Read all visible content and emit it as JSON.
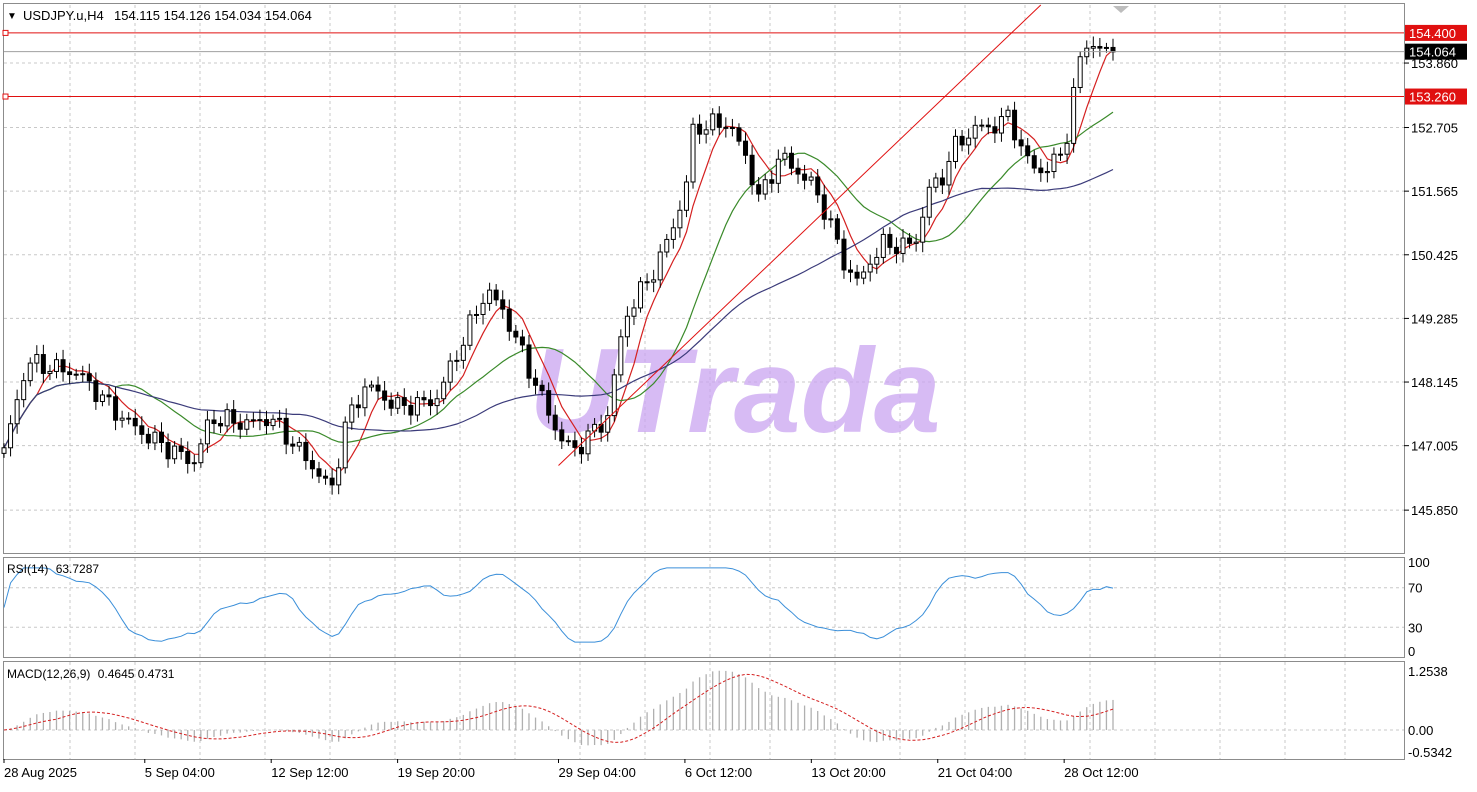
{
  "header": {
    "arrow": "▼",
    "symbol": "USDJPY.u,H4",
    "ohlc": "154.115 154.126 154.034 154.064"
  },
  "watermark": "UTrada",
  "colors": {
    "candle": "#000000",
    "sma_fast": "#d42020",
    "sma_mid": "#3a8a2a",
    "sma_slow": "#3b3b7a",
    "level_line": "#e01010",
    "trendline": "#e01010",
    "rsi": "#3b8fd9",
    "macd_hist": "#b0b0b0",
    "macd_signal": "#d42020",
    "price_tag_bg": "#000000",
    "level_tag_bg": "#e01010",
    "watermark": "#c9a4f0",
    "grid": "#c8c8c8"
  },
  "chart_data": [
    {
      "type": "candlestick",
      "name": "price",
      "ylim": [
        145.1,
        154.9
      ],
      "ytick_labels": [
        "145.850",
        "147.005",
        "148.145",
        "149.285",
        "150.425",
        "151.565",
        "152.705",
        "153.860"
      ],
      "xtick_labels": [
        "28 Aug 2025",
        "5 Sep 04:00",
        "12 Sep 12:00",
        "19 Sep 20:00",
        "29 Sep 04:00",
        "6 Oct 12:00",
        "13 Oct 20:00",
        "21 Oct 04:00",
        "28 Oct 12:00"
      ],
      "current_price": "154.064",
      "horizontal_levels": [
        "154.400",
        "153.260"
      ],
      "trendline": {
        "from": [
          "29 Sep 04:00",
          146.65
        ],
        "to": [
          "28 Oct 12:00",
          155.3
        ]
      },
      "anchors": [
        [
          "28 Aug 2025",
          146.9
        ],
        [
          "29 Aug 08:00",
          148.5
        ],
        [
          "1 Sep 08:00",
          148.3
        ],
        [
          "3 Sep 12:00",
          147.6
        ],
        [
          "5 Sep 04:00",
          147.2
        ],
        [
          "8 Sep 00:00",
          146.7
        ],
        [
          "9 Sep 00:00",
          147.5
        ],
        [
          "11 Sep 04:00",
          147.4
        ],
        [
          "12 Sep 12:00",
          147.5
        ],
        [
          "15 Sep 00:00",
          146.6
        ],
        [
          "16 Sep 00:00",
          146.2
        ],
        [
          "16 Sep 20:00",
          147.4
        ],
        [
          "18 Sep 00:00",
          148.1
        ],
        [
          "19 Sep 20:00",
          147.7
        ],
        [
          "22 Sep 00:00",
          147.8
        ],
        [
          "23 Sep 12:00",
          148.8
        ],
        [
          "25 Sep 00:00",
          149.8
        ],
        [
          "26 Sep 00:00",
          149.4
        ],
        [
          "28 Sep 00:00",
          148.0
        ],
        [
          "29 Sep 04:00",
          147.2
        ],
        [
          "30 Sep 00:00",
          146.9
        ],
        [
          "1 Oct 08:00",
          147.3
        ],
        [
          "2 Oct 00:00",
          147.5
        ],
        [
          "3 Oct 00:00",
          149.3
        ],
        [
          "5 Oct 00:00",
          150.3
        ],
        [
          "6 Oct 12:00",
          151.5
        ],
        [
          "7 Oct 00:00",
          152.7
        ],
        [
          "9 Oct 00:00",
          152.8
        ],
        [
          "10 Oct 00:00",
          152.2
        ],
        [
          "10 Oct 20:00",
          151.4
        ],
        [
          "12 Oct 00:00",
          152.2
        ],
        [
          "13 Oct 20:00",
          151.7
        ],
        [
          "14 Oct 16:00",
          151.2
        ],
        [
          "15 Oct 20:00",
          150.2
        ],
        [
          "16 Oct 16:00",
          149.9
        ],
        [
          "17 Oct 04:00",
          150.3
        ],
        [
          "18 Oct 00:00",
          150.6
        ],
        [
          "19 Oct 20:00",
          150.6
        ],
        [
          "20 Oct 20:00",
          151.8
        ],
        [
          "21 Oct 04:00",
          151.6
        ],
        [
          "22 Oct 00:00",
          152.3
        ],
        [
          "23 Oct 08:00",
          152.7
        ],
        [
          "24 Oct 04:00",
          152.7
        ],
        [
          "25 Oct 08:00",
          152.9
        ],
        [
          "26 Oct 08:00",
          152.1
        ],
        [
          "27 Oct 08:00",
          151.9
        ],
        [
          "28 Oct 12:00",
          152.3
        ],
        [
          "29 Oct 00:00",
          153.2
        ],
        [
          "29 Oct 16:00",
          154.3
        ],
        [
          "30 Oct 08:00",
          154.1
        ],
        [
          "31 Oct 08:00",
          154.06
        ]
      ]
    },
    {
      "type": "line",
      "name": "RSI(14)",
      "value_label": "63.7287",
      "ylim": [
        0,
        100
      ],
      "ytick_labels": [
        "0",
        "30",
        "70",
        "100"
      ]
    },
    {
      "type": "bar",
      "name": "MACD(12,26,9)",
      "value_label": "0.4645 0.4731",
      "ylim": [
        -0.5342,
        1.2538
      ],
      "ytick_labels": [
        "-0.5342",
        "0.00",
        "1.2538"
      ]
    }
  ]
}
